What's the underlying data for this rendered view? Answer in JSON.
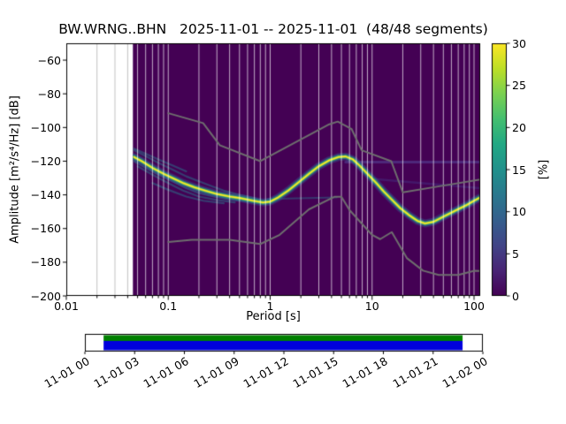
{
  "chart_data": {
    "type": "heatmap",
    "subtype": "ppsd-probabilistic-power-spectral-density",
    "title": "BW.WRNG..BHN   2025-11-01 -- 2025-11-01  (48/48 segments)",
    "xlabel": "Period [s]",
    "ylabel": "Amplitude [m²/s⁴/Hz] [dB]",
    "x_scale": "log",
    "xlim": [
      0.01,
      115
    ],
    "ylim": [
      -200,
      -50
    ],
    "grid": "vertical-log-gridlines",
    "background_color": "#440154",
    "grid_color_over_data": "rgba(255,255,255,0.85)",
    "grid_color_outside": "#b0b0b0",
    "data_start_period": 0.045,
    "xticks": [
      {
        "value": 0.01,
        "label": "0.01"
      },
      {
        "value": 0.1,
        "label": "0.1"
      },
      {
        "value": 1,
        "label": "1"
      },
      {
        "value": 10,
        "label": "10"
      },
      {
        "value": 100,
        "label": "100"
      }
    ],
    "yticks": [
      {
        "value": -60,
        "label": "−60"
      },
      {
        "value": -80,
        "label": "−80"
      },
      {
        "value": -100,
        "label": "−100"
      },
      {
        "value": -120,
        "label": "−120"
      },
      {
        "value": -140,
        "label": "−140"
      },
      {
        "value": -160,
        "label": "−160"
      },
      {
        "value": -180,
        "label": "−180"
      },
      {
        "value": -200,
        "label": "−200"
      }
    ],
    "psd_mode_curve": [
      [
        0.046,
        -117.5
      ],
      [
        0.055,
        -120
      ],
      [
        0.07,
        -124
      ],
      [
        0.09,
        -127.5
      ],
      [
        0.11,
        -130
      ],
      [
        0.14,
        -133
      ],
      [
        0.18,
        -135.5
      ],
      [
        0.23,
        -137.5
      ],
      [
        0.3,
        -139.5
      ],
      [
        0.4,
        -141
      ],
      [
        0.52,
        -142
      ],
      [
        0.68,
        -143.5
      ],
      [
        0.85,
        -144.5
      ],
      [
        1.0,
        -144
      ],
      [
        1.2,
        -141.5
      ],
      [
        1.5,
        -137.5
      ],
      [
        1.9,
        -132.5
      ],
      [
        2.4,
        -127.5
      ],
      [
        3.0,
        -123
      ],
      [
        3.8,
        -119.5
      ],
      [
        4.7,
        -117.5
      ],
      [
        5.5,
        -117.2
      ],
      [
        6.5,
        -119
      ],
      [
        7.5,
        -122.5
      ],
      [
        9.0,
        -127.5
      ],
      [
        11,
        -133
      ],
      [
        13,
        -138
      ],
      [
        16,
        -143.5
      ],
      [
        19,
        -148
      ],
      [
        23,
        -152
      ],
      [
        28,
        -155.5
      ],
      [
        33,
        -157
      ],
      [
        40,
        -156
      ],
      [
        48,
        -153.5
      ],
      [
        58,
        -151
      ],
      [
        70,
        -148.5
      ],
      [
        85,
        -146
      ],
      [
        100,
        -143.5
      ],
      [
        115,
        -141.5
      ]
    ],
    "psd_mode_layers": [
      {
        "color": "rgba(59,82,139,0.45)",
        "width": 9
      },
      {
        "color": "rgba(33,145,140,0.70)",
        "width": 5.5
      },
      {
        "color": "rgba(122,209,81,0.90)",
        "width": 3
      },
      {
        "color": "#fde725",
        "width": 1.6
      }
    ],
    "psd_branches": [
      [
        [
          0.046,
          -112.5
        ],
        [
          0.06,
          -115.5
        ],
        [
          0.08,
          -119
        ],
        [
          0.11,
          -122.5
        ],
        [
          0.15,
          -126
        ]
      ],
      [
        [
          0.046,
          -113.5
        ],
        [
          0.06,
          -117
        ],
        [
          0.08,
          -121
        ],
        [
          0.11,
          -125
        ],
        [
          0.15,
          -129
        ],
        [
          0.2,
          -132
        ],
        [
          0.27,
          -135
        ],
        [
          0.35,
          -137.5
        ],
        [
          0.5,
          -140
        ],
        [
          0.7,
          -142
        ],
        [
          0.9,
          -144
        ]
      ],
      [
        [
          0.046,
          -120
        ],
        [
          0.06,
          -124
        ],
        [
          0.08,
          -128
        ],
        [
          0.11,
          -132
        ],
        [
          0.15,
          -136
        ],
        [
          0.2,
          -139
        ],
        [
          0.28,
          -141
        ],
        [
          0.4,
          -142.5
        ],
        [
          0.6,
          -144
        ]
      ],
      [
        [
          0.05,
          -123
        ],
        [
          0.07,
          -128
        ],
        [
          0.1,
          -133
        ],
        [
          0.14,
          -137.5
        ],
        [
          0.2,
          -141
        ],
        [
          0.3,
          -143
        ],
        [
          0.45,
          -144.5
        ]
      ],
      [
        [
          0.07,
          -133
        ],
        [
          0.1,
          -137
        ],
        [
          0.15,
          -141
        ],
        [
          0.22,
          -143.5
        ],
        [
          0.35,
          -145
        ]
      ]
    ],
    "psd_branch_style": {
      "color": "rgba(42,120,142,0.5)",
      "width": 2.2
    },
    "psd_streaks": [
      {
        "points": [
          [
            5.5,
            -120.5
          ],
          [
            115,
            -120.5
          ]
        ],
        "color": "rgba(86,77,160,0.5)",
        "width": 3
      },
      {
        "points": [
          [
            10,
            -130.5
          ],
          [
            115,
            -136
          ]
        ],
        "color": "rgba(70,70,150,0.35)",
        "width": 2.5
      },
      {
        "points": [
          [
            0.95,
            -142.5
          ],
          [
            4.5,
            -141.5
          ]
        ],
        "color": "rgba(42,120,142,0.45)",
        "width": 2
      }
    ],
    "noise_models": {
      "color": "#6e6e6e",
      "width": 2,
      "nhnm": [
        [
          0.1,
          -91.5
        ],
        [
          0.22,
          -97.4
        ],
        [
          0.32,
          -110.5
        ],
        [
          0.8,
          -120.0
        ],
        [
          3.8,
          -98.1
        ],
        [
          4.6,
          -96.5
        ],
        [
          6.3,
          -101.0
        ],
        [
          7.9,
          -113.5
        ],
        [
          15.4,
          -120.0
        ],
        [
          20.0,
          -138.5
        ],
        [
          50.0,
          -134.5
        ],
        [
          115.0,
          -130.9
        ]
      ],
      "nlnm": [
        [
          0.1,
          -168.0
        ],
        [
          0.17,
          -166.7
        ],
        [
          0.4,
          -166.7
        ],
        [
          0.8,
          -169.2
        ],
        [
          1.24,
          -163.7
        ],
        [
          2.4,
          -148.6
        ],
        [
          4.3,
          -141.1
        ],
        [
          5.0,
          -141.1
        ],
        [
          6.0,
          -149.0
        ],
        [
          10.0,
          -163.8
        ],
        [
          12.0,
          -166.3
        ],
        [
          15.6,
          -162.1
        ],
        [
          21.9,
          -177.5
        ],
        [
          31.6,
          -185.0
        ],
        [
          45.0,
          -187.5
        ],
        [
          70.0,
          -187.5
        ],
        [
          101.0,
          -185.1
        ],
        [
          115.0,
          -185.2
        ]
      ]
    },
    "colorbar": {
      "label": "[%]",
      "min": 0,
      "max": 30,
      "ticks": [
        {
          "value": 0,
          "label": "0"
        },
        {
          "value": 5,
          "label": "5"
        },
        {
          "value": 10,
          "label": "10"
        },
        {
          "value": 15,
          "label": "15"
        },
        {
          "value": 20,
          "label": "20"
        },
        {
          "value": 25,
          "label": "25"
        },
        {
          "value": 30,
          "label": "30"
        }
      ],
      "colormap": "viridis",
      "stops": [
        [
          0.0,
          "#440154"
        ],
        [
          0.1,
          "#482475"
        ],
        [
          0.2,
          "#414487"
        ],
        [
          0.3,
          "#355f8d"
        ],
        [
          0.4,
          "#2a788e"
        ],
        [
          0.5,
          "#21918c"
        ],
        [
          0.6,
          "#22a884"
        ],
        [
          0.7,
          "#44bf70"
        ],
        [
          0.8,
          "#7ad151"
        ],
        [
          0.9,
          "#bddf26"
        ],
        [
          1.0,
          "#fde725"
        ]
      ]
    },
    "timeline": {
      "tick_labels": [
        "11-01 00",
        "11-01 03",
        "11-01 06",
        "11-01 09",
        "11-01 12",
        "11-01 15",
        "11-01 18",
        "11-01 21",
        "11-02 00"
      ],
      "coverage": {
        "start_frac": 0.047,
        "end_frac": 0.949,
        "top_color": "#008000",
        "bottom_color": "#0000dd"
      }
    }
  }
}
